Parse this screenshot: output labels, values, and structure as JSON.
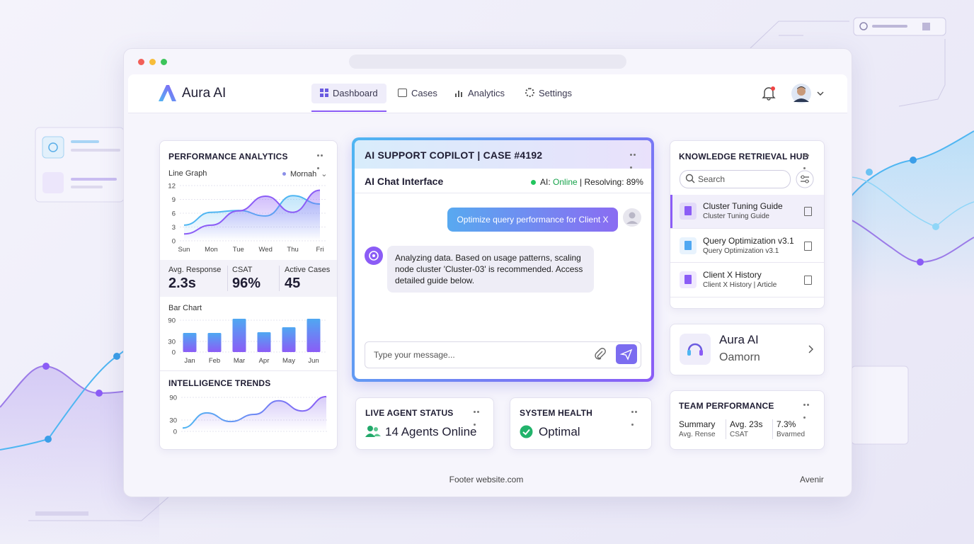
{
  "nav": {
    "brand": "Aura AI",
    "tabs": [
      "Dashboard",
      "Cases",
      "Analytics",
      "Settings"
    ]
  },
  "performance": {
    "title": "PERFORMANCE ANALYTICS",
    "line_graph": {
      "label": "Line Graph",
      "legend": "Mornah",
      "categories": [
        "Sun",
        "Mon",
        "Tue",
        "Wed",
        "Thu",
        "Fri"
      ],
      "ylim": [
        0,
        12
      ],
      "yticks": [
        0,
        3,
        6,
        9,
        12
      ],
      "series": [
        {
          "color": "#4fb6f2",
          "values": [
            3.4,
            6.2,
            6.6,
            5.4,
            9.8,
            8
          ]
        },
        {
          "color": "#8b5cf6",
          "values": [
            1.5,
            3.4,
            6.5,
            9.7,
            6.2,
            11
          ]
        }
      ]
    },
    "stats": [
      {
        "label": "Avg. Response",
        "value": "2.3s"
      },
      {
        "label": "CSAT",
        "value": "96%"
      },
      {
        "label": "Active Cases",
        "value": "45"
      }
    ],
    "bar_chart": {
      "label": "Bar Chart",
      "categories": [
        "Jan",
        "Feb",
        "Mar",
        "Apr",
        "May",
        "Jun"
      ],
      "values": [
        54,
        54,
        94,
        56,
        70,
        94
      ],
      "ylim": [
        0,
        90
      ],
      "yticks": [
        0,
        30,
        90
      ]
    },
    "trends": {
      "title": "INTELLIGENCE TRENDS",
      "values": [
        9,
        49,
        26,
        45,
        81,
        54,
        92
      ],
      "ylim": [
        0,
        90
      ],
      "yticks": [
        0,
        30,
        90
      ],
      "color": "#8b5cf6"
    }
  },
  "copilot": {
    "title": "AI SUPPORT COPILOT | CASE #4192",
    "subtitle": "AI Chat Interface",
    "status_prefix": "AI:",
    "status": "Online",
    "status_suffix": "| Resolving: 89%",
    "user_message": "Optimize query performance for Client X",
    "ai_message": "Analyzing data. Based on usage patterns, scaling node cluster 'Cluster-03' is recommended. Access detailed guide below.",
    "input_placeholder": "Type your message..."
  },
  "live_agent": {
    "title": "LIVE AGENT STATUS",
    "value": "14 Agents Online"
  },
  "system_health": {
    "title": "SYSTEM HEALTH",
    "value": "Optimal"
  },
  "knowledge": {
    "title": "KNOWLEDGE RETRIEVAL HUB",
    "search": "Search",
    "items": [
      {
        "title": "Cluster Tuning Guide",
        "subtitle": "Cluster Tuning Guide"
      },
      {
        "title": "Query Optimization v3.1",
        "subtitle": "Query Optimization v3.1"
      },
      {
        "title": "Client X History",
        "subtitle": "Client X History | Article"
      }
    ]
  },
  "aura_card": {
    "title": "Aura AI",
    "subtitle": "Oamorn"
  },
  "team": {
    "title": "TEAM PERFORMANCE",
    "stats": [
      {
        "value": "Summary",
        "label": "Avg. Rense"
      },
      {
        "value": "Avg. 23s",
        "label": "CSAT"
      },
      {
        "value": "7.3%",
        "label": "Bvarmed"
      }
    ]
  },
  "footer": {
    "text": "Footer website.com",
    "right": "Avenir"
  }
}
